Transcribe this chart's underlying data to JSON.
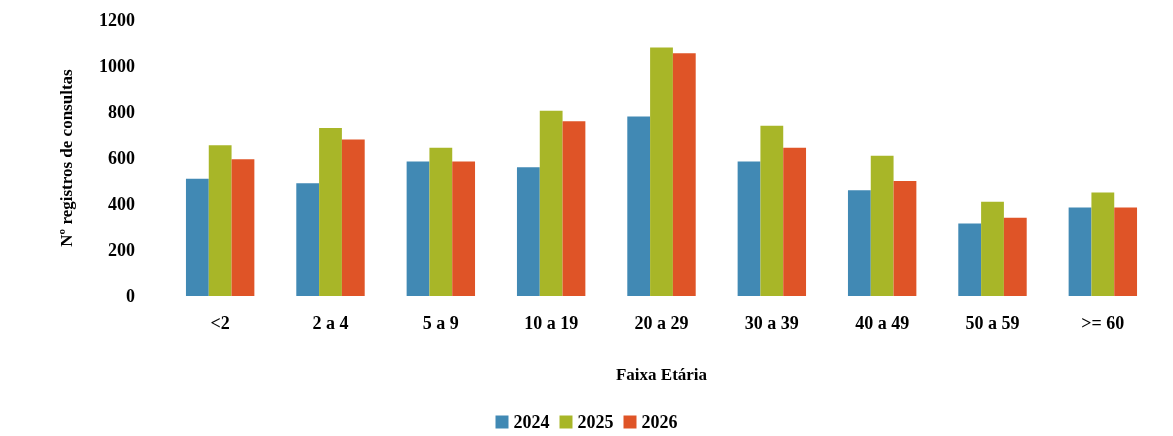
{
  "chart_data": {
    "type": "bar",
    "xlabel": "Faixa Etária",
    "ylabel": "Nº registros de consultas",
    "categories": [
      "<2",
      "2 a 4",
      "5 a 9",
      "10 a 19",
      "20 a 29",
      "30 a 39",
      "40 a 49",
      "50 a 59",
      ">= 60"
    ],
    "series": [
      {
        "name": "2024",
        "color": "#4189b4",
        "values": [
          510,
          490,
          585,
          560,
          780,
          585,
          460,
          315,
          385
        ]
      },
      {
        "name": "2025",
        "color": "#a8b628",
        "values": [
          655,
          730,
          645,
          805,
          1080,
          740,
          610,
          410,
          450
        ]
      },
      {
        "name": "2026",
        "color": "#df5427",
        "values": [
          595,
          680,
          585,
          760,
          1055,
          645,
          500,
          340,
          385
        ]
      }
    ],
    "ylim": [
      0,
      1200
    ],
    "yticks": [
      0,
      200,
      400,
      600,
      800,
      1000,
      1200
    ],
    "grid": false,
    "legend": "bottom"
  }
}
